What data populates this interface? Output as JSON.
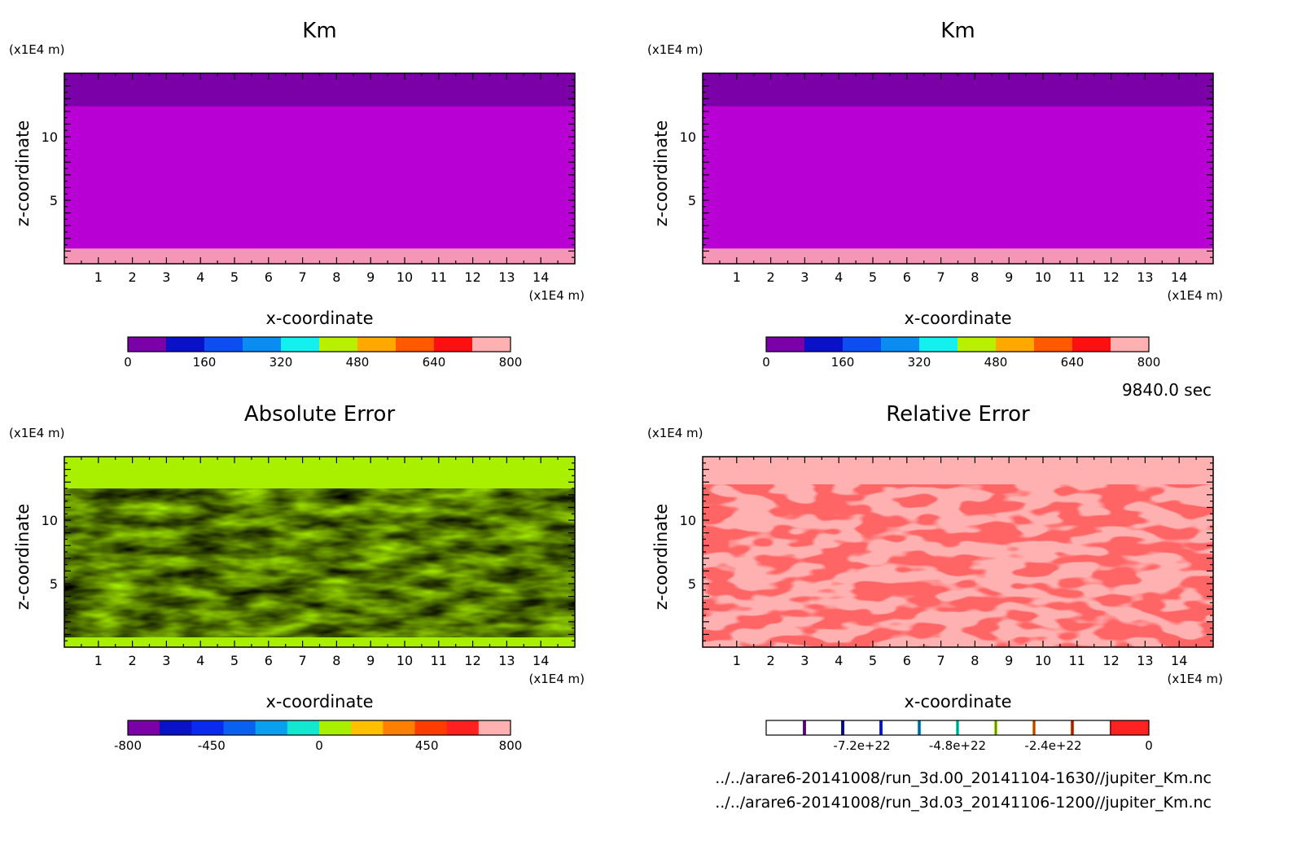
{
  "time_label": "9840.0 sec",
  "files": [
    "../../arare6-20141008/run_3d.00_20141104-1630//jupiter_Km.nc",
    "../../arare6-20141008/run_3d.03_20141106-1200//jupiter_Km.nc"
  ],
  "colors": {
    "km_levels": [
      "#7b00a8",
      "#0a12c8",
      "#0c4ef0",
      "#0a8cf0",
      "#12f0f0",
      "#b8f000",
      "#ffa800",
      "#ff5a00",
      "#ff1010",
      "#ffb0b0"
    ],
    "abs_levels": [
      "#7b00a8",
      "#0a12c8",
      "#0a2af0",
      "#0a60f0",
      "#0aa0f0",
      "#12e8d0",
      "#a8f000",
      "#ffc000",
      "#ff8000",
      "#ff3c00",
      "#ff2020",
      "#ffb0b0"
    ],
    "rel_fill": "#ff2222",
    "rel_bg": "#ffb0b0"
  },
  "chart_data": [
    {
      "type": "heatmap",
      "title": "Km",
      "xlabel": "x-coordinate",
      "ylabel": "z-coordinate",
      "x_unit": "(x1E4 m)",
      "y_unit": "(x1E4 m)",
      "xlim": [
        0,
        15
      ],
      "ylim": [
        0,
        15
      ],
      "x_ticks": [
        "1",
        "2",
        "3",
        "4",
        "5",
        "6",
        "7",
        "8",
        "9",
        "10",
        "11",
        "12",
        "13",
        "14"
      ],
      "y_ticks": [
        "5",
        "10"
      ],
      "colorbar": {
        "range": [
          0,
          800
        ],
        "tick_labels": [
          "0",
          "160",
          "320",
          "480",
          "640",
          "800"
        ]
      }
    },
    {
      "type": "heatmap",
      "title": "Km",
      "xlabel": "x-coordinate",
      "ylabel": "z-coordinate",
      "x_unit": "(x1E4 m)",
      "y_unit": "(x1E4 m)",
      "xlim": [
        0,
        15
      ],
      "ylim": [
        0,
        15
      ],
      "x_ticks": [
        "1",
        "2",
        "3",
        "4",
        "5",
        "6",
        "7",
        "8",
        "9",
        "10",
        "11",
        "12",
        "13",
        "14"
      ],
      "y_ticks": [
        "5",
        "10"
      ],
      "colorbar": {
        "range": [
          0,
          800
        ],
        "tick_labels": [
          "0",
          "160",
          "320",
          "480",
          "640",
          "800"
        ]
      }
    },
    {
      "type": "heatmap",
      "title": "Absolute Error",
      "xlabel": "x-coordinate",
      "ylabel": "z-coordinate",
      "x_unit": "(x1E4 m)",
      "y_unit": "(x1E4 m)",
      "xlim": [
        0,
        15
      ],
      "ylim": [
        0,
        15
      ],
      "x_ticks": [
        "1",
        "2",
        "3",
        "4",
        "5",
        "6",
        "7",
        "8",
        "9",
        "10",
        "11",
        "12",
        "13",
        "14"
      ],
      "y_ticks": [
        "5",
        "10"
      ],
      "colorbar": {
        "range": [
          -800,
          800
        ],
        "tick_labels": [
          "-800",
          "-450",
          "0",
          "450",
          "800"
        ]
      }
    },
    {
      "type": "heatmap",
      "title": "Relative Error",
      "xlabel": "x-coordinate",
      "ylabel": "z-coordinate",
      "x_unit": "(x1E4 m)",
      "y_unit": "(x1E4 m)",
      "xlim": [
        0,
        15
      ],
      "ylim": [
        0,
        15
      ],
      "x_ticks": [
        "1",
        "2",
        "3",
        "4",
        "5",
        "6",
        "7",
        "8",
        "9",
        "10",
        "11",
        "12",
        "13",
        "14"
      ],
      "y_ticks": [
        "5",
        "10"
      ],
      "colorbar": {
        "range": [
          -9.6e+22,
          0
        ],
        "tick_labels": [
          "-7.2e+22",
          "-4.8e+22",
          "-2.4e+22",
          "0"
        ]
      }
    }
  ]
}
